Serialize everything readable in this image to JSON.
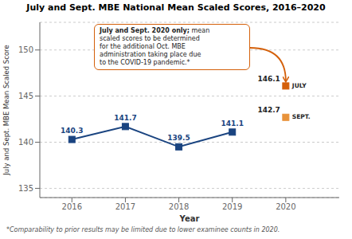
{
  "chart_data": {
    "type": "line",
    "title": "July and Sept. MBE National Mean Scaled Scores, 2016–2020",
    "x_label": "Year",
    "y_label": "July and Sept. MBE Mean Scaled Score",
    "x": [
      2016,
      2017,
      2018,
      2019,
      2020
    ],
    "series": [
      {
        "color": "#1a4480",
        "marker": "square",
        "values": [
          140.3,
          141.7,
          139.5,
          141.1,
          null
        ]
      },
      {
        "name": "JULY",
        "color": "#d4600a",
        "marker": "square",
        "values": [
          null,
          null,
          null,
          null,
          146.1
        ]
      },
      {
        "name": "SEPT.",
        "color": "#e8923a",
        "marker": "square",
        "values": [
          null,
          null,
          null,
          null,
          142.7
        ]
      }
    ],
    "xlim": [
      2015.4,
      2021.0
    ],
    "xticks": [
      2016,
      2017,
      2018,
      2019,
      2020
    ],
    "ylim": [
      134,
      153
    ],
    "yticks": [
      135,
      140,
      145,
      150
    ],
    "grid": true,
    "data_labels": true,
    "annotation": [
      "July and Sept. 2020 only; mean",
      "scaled scores to be determined",
      "for the additional Oct. MBE",
      "administration taking place due",
      "to the COVID-19 pandemic.*"
    ],
    "footnote": "*Comparability to prior results may be limited due to lower examinee counts in 2020."
  }
}
